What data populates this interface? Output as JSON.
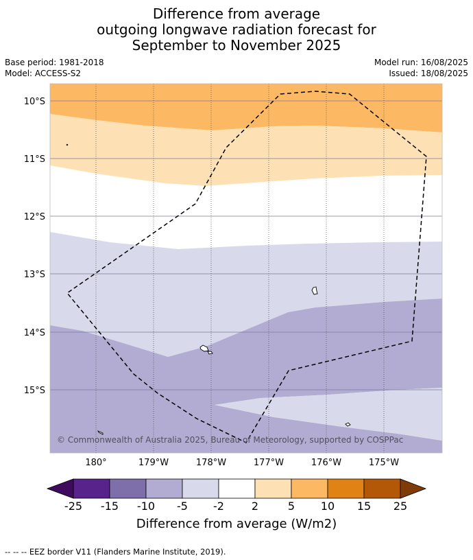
{
  "title": {
    "line1": "Difference from average",
    "line2": "outgoing longwave radiation forecast for",
    "line3": "September to November 2025"
  },
  "meta": {
    "base_period": "Base period: 1981-2018",
    "model": "Model: ACCESS-S2",
    "model_run": "Model run: 16/08/2025",
    "issued": "Issued: 18/08/2025"
  },
  "map": {
    "lat_labels": [
      "10°S",
      "11°S",
      "12°S",
      "13°S",
      "14°S",
      "15°S"
    ],
    "lon_labels": [
      "180°",
      "179°W",
      "178°W",
      "177°W",
      "176°W",
      "175°W"
    ],
    "copyright": "© Commonwealth of Australia 2025, Bureau of Meteorology, supported by COSPPac"
  },
  "colorbar": {
    "labels": [
      "-25",
      "-15",
      "-10",
      "-5",
      "-2",
      "2",
      "5",
      "10",
      "15",
      "25"
    ],
    "colors": [
      "#3f0b5e",
      "#59238c",
      "#7e6faa",
      "#b2abd2",
      "#d8d9ea",
      "#ffffff",
      "#fee0b5",
      "#fdb863",
      "#e08214",
      "#b35806",
      "#7f3b08"
    ],
    "title": "Difference from average (W/m2)"
  },
  "legend": {
    "eez": "--  --  -- EEZ border V11 (Flanders Marine Institute, 2019)."
  }
}
